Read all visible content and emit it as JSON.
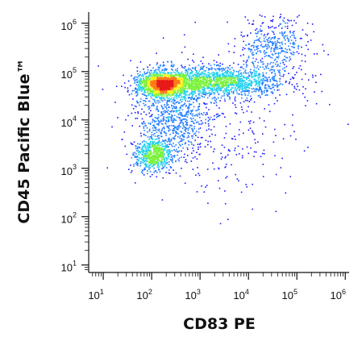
{
  "chart_data": {
    "type": "scatter",
    "subtype": "density-dot-plot",
    "title": "",
    "xlabel": "CD83 PE",
    "ylabel": "CD45 Pacific Blue™",
    "x_scale": "log",
    "y_scale": "log",
    "xlim": [
      5,
      1200000
    ],
    "ylim": [
      7,
      1700000
    ],
    "x_ticks": [
      {
        "base": "10",
        "exp": "1",
        "value": 10
      },
      {
        "base": "10",
        "exp": "2",
        "value": 100
      },
      {
        "base": "10",
        "exp": "3",
        "value": 1000
      },
      {
        "base": "10",
        "exp": "4",
        "value": 10000
      },
      {
        "base": "10",
        "exp": "5",
        "value": 100000
      },
      {
        "base": "10",
        "exp": "6",
        "value": 1000000
      }
    ],
    "y_ticks": [
      {
        "base": "10",
        "exp": "1",
        "value": 10
      },
      {
        "base": "10",
        "exp": "2",
        "value": 100
      },
      {
        "base": "10",
        "exp": "3",
        "value": 1000
      },
      {
        "base": "10",
        "exp": "4",
        "value": 10000
      },
      {
        "base": "10",
        "exp": "5",
        "value": 100000
      },
      {
        "base": "10",
        "exp": "6",
        "value": 1000000
      }
    ],
    "grid": false,
    "legend": "none",
    "colormap": [
      "#1a1aff",
      "#1e7bff",
      "#22d0ee",
      "#7af23c",
      "#f2f21f",
      "#ff7a1a",
      "#e81a1a"
    ],
    "populations": [
      {
        "center_log10": [
          2.25,
          4.75
        ],
        "spread_log10": [
          0.25,
          0.12
        ],
        "weight": 0.3
      },
      {
        "center_log10": [
          3.3,
          4.8
        ],
        "spread_log10": [
          0.7,
          0.16
        ],
        "weight": 0.3
      },
      {
        "center_log10": [
          2.05,
          3.28
        ],
        "spread_log10": [
          0.2,
          0.16
        ],
        "weight": 0.12
      },
      {
        "center_log10": [
          2.45,
          4.05
        ],
        "spread_log10": [
          0.4,
          0.45
        ],
        "weight": 0.14
      },
      {
        "center_log10": [
          4.5,
          5.55
        ],
        "spread_log10": [
          0.4,
          0.3
        ],
        "weight": 0.08
      },
      {
        "center_log10": [
          3.3,
          3.9
        ],
        "spread_log10": [
          1.0,
          0.8
        ],
        "weight": 0.06
      }
    ]
  }
}
